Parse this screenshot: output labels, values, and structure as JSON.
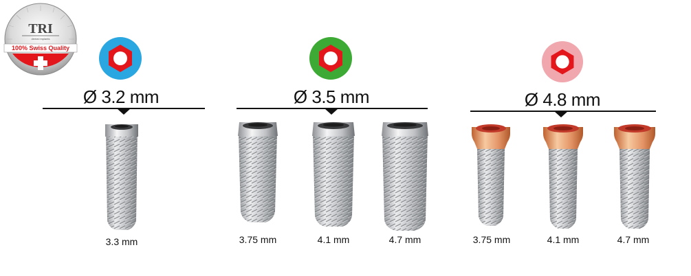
{
  "logo": {
    "brand": "TRI",
    "sub": "dental implants",
    "quality": "100% Swiss Quality",
    "flag_color": "#e3161c"
  },
  "groups": [
    {
      "diameter": "Ø 3.2 mm",
      "badge_color": "#2aa6e0",
      "collar": "silver",
      "sizes": [
        "3.3 mm"
      ]
    },
    {
      "diameter": "Ø 3.5 mm",
      "badge_color": "#3caa34",
      "collar": "silver",
      "sizes": [
        "3.75 mm",
        "4.1 mm",
        "4.7 mm"
      ]
    },
    {
      "diameter": "Ø 4.8 mm",
      "badge_color": "#f0a8ae",
      "collar": "rose-gold",
      "sizes": [
        "3.75 mm",
        "4.1 mm",
        "4.7 mm"
      ]
    }
  ],
  "colors": {
    "hex_red": "#e3161c",
    "text": "#111111"
  }
}
